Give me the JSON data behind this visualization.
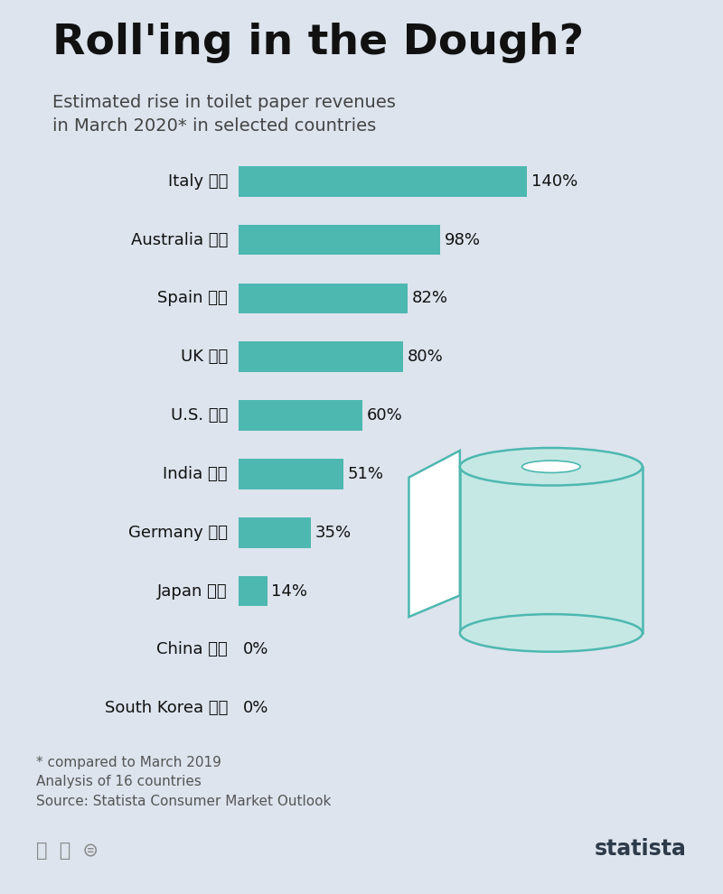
{
  "title": "Roll'ing in the Dough?",
  "subtitle": "Estimated rise in toilet paper revenues\nin March 2020* in selected countries",
  "footnote": "* compared to March 2019\nAnalysis of 16 countries\nSource: Statista Consumer Market Outlook",
  "background_color": "#dde4ed",
  "bar_color": "#4db8b0",
  "title_color": "#111111",
  "subtitle_color": "#444444",
  "footnote_color": "#555555",
  "countries": [
    "Italy",
    "Australia",
    "Spain",
    "UK",
    "U.S.",
    "India",
    "Germany",
    "Japan",
    "China",
    "South Korea"
  ],
  "values": [
    140,
    98,
    82,
    80,
    60,
    51,
    35,
    14,
    0,
    0
  ],
  "flag_emojis": [
    "🇮🇹",
    "🇦🇺",
    "🇪🇸",
    "🇬🇧",
    "🇺🇸",
    "🇮🇳",
    "🇩🇪",
    "🇯🇵",
    "🇨🇳",
    "🇰🇷"
  ],
  "xlim": [
    0,
    158
  ],
  "bar_height": 0.52,
  "title_fontsize": 34,
  "subtitle_fontsize": 14,
  "label_fontsize": 13,
  "value_fontsize": 13,
  "footnote_fontsize": 11,
  "statista_color": "#2d3a4a",
  "accent_color": "#4db8b0",
  "tp_fill": "#c5e8e4",
  "tp_edge": "#4db8b0",
  "tp_white": "#f0f8f7"
}
